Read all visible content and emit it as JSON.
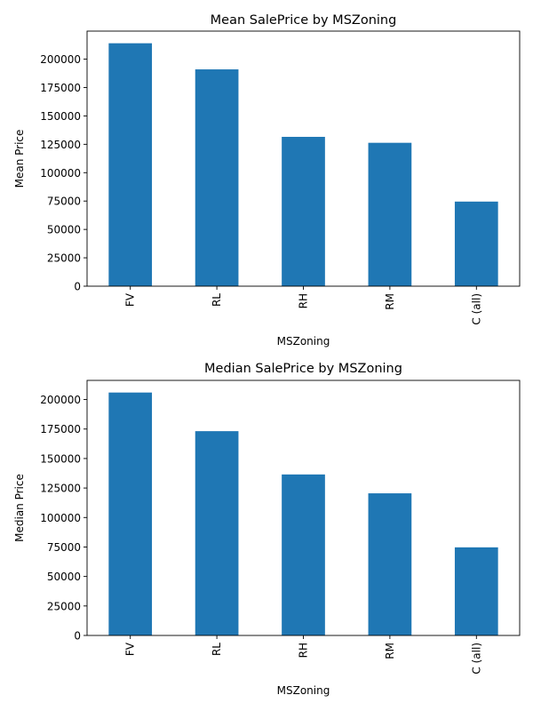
{
  "chart_data": [
    {
      "type": "bar",
      "title": "Mean SalePrice by MSZoning",
      "xlabel": "MSZoning",
      "ylabel": "Mean Price",
      "categories": [
        "FV",
        "RL",
        "RH",
        "RM",
        "C (all)"
      ],
      "values": [
        214014,
        191005,
        131558,
        126317,
        74528
      ],
      "ylim": [
        0,
        214014
      ],
      "yticks": [
        0,
        25000,
        50000,
        75000,
        100000,
        125000,
        150000,
        175000,
        200000
      ],
      "bar_color": "#1f77b4",
      "grid": false,
      "legend": "none"
    },
    {
      "type": "bar",
      "title": "Median SalePrice by MSZoning",
      "xlabel": "MSZoning",
      "ylabel": "Median Price",
      "categories": [
        "FV",
        "RL",
        "RH",
        "RM",
        "C (all)"
      ],
      "values": [
        205950,
        173200,
        136500,
        120500,
        74700
      ],
      "ylim": [
        0,
        205950
      ],
      "yticks": [
        0,
        25000,
        50000,
        75000,
        100000,
        125000,
        150000,
        175000,
        200000
      ],
      "bar_color": "#1f77b4",
      "grid": false,
      "legend": "none"
    }
  ]
}
